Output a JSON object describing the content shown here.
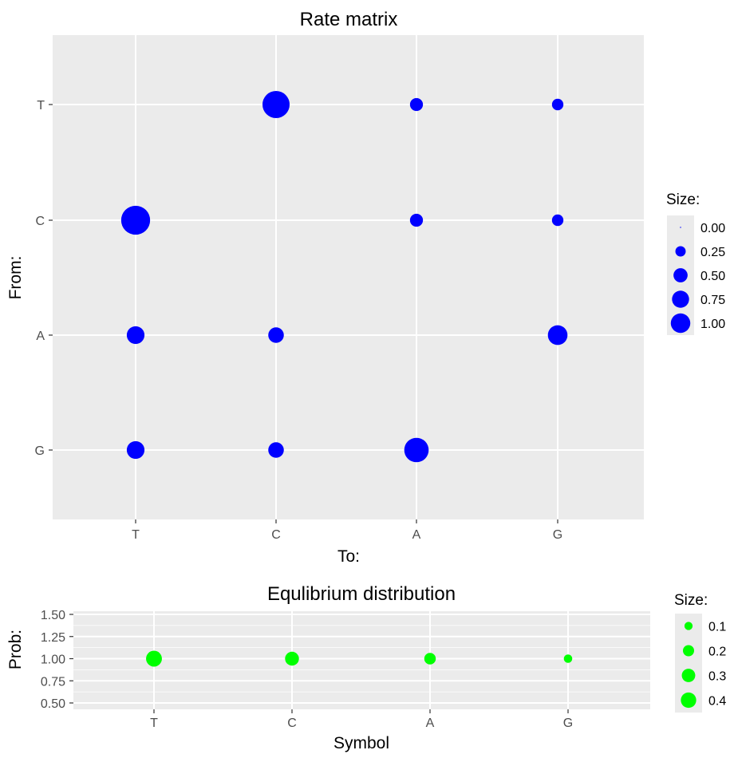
{
  "chart_data": [
    {
      "type": "scatter",
      "title": "Rate matrix",
      "xlabel": "To:",
      "ylabel": "From:",
      "x_categories": [
        "T",
        "C",
        "A",
        "G"
      ],
      "y_categories": [
        "T",
        "C",
        "A",
        "G"
      ],
      "points": [
        {
          "to": "C",
          "from": "T",
          "size": 1.0
        },
        {
          "to": "A",
          "from": "T",
          "size": 0.2
        },
        {
          "to": "G",
          "from": "T",
          "size": 0.15
        },
        {
          "to": "T",
          "from": "C",
          "size": 1.15
        },
        {
          "to": "A",
          "from": "C",
          "size": 0.2
        },
        {
          "to": "G",
          "from": "C",
          "size": 0.15
        },
        {
          "to": "T",
          "from": "A",
          "size": 0.4
        },
        {
          "to": "C",
          "from": "A",
          "size": 0.3
        },
        {
          "to": "G",
          "from": "A",
          "size": 0.5
        },
        {
          "to": "T",
          "from": "G",
          "size": 0.4
        },
        {
          "to": "C",
          "from": "G",
          "size": 0.3
        },
        {
          "to": "A",
          "from": "G",
          "size": 0.8
        }
      ],
      "legend": {
        "title": "Size:",
        "placement": "right",
        "entries": [
          {
            "label": "0.00",
            "value": 0.0
          },
          {
            "label": "0.25",
            "value": 0.25
          },
          {
            "label": "0.50",
            "value": 0.5
          },
          {
            "label": "0.75",
            "value": 0.75
          },
          {
            "label": "1.00",
            "value": 1.0
          }
        ]
      },
      "color": "#0000ff",
      "panel_color": "#ebebeb",
      "grid": true
    },
    {
      "type": "scatter",
      "title": "Equlibrium distribution",
      "xlabel": "Symbol",
      "ylabel": "Prob:",
      "x_categories": [
        "T",
        "C",
        "A",
        "G"
      ],
      "y_ticks": [
        "0.50",
        "0.75",
        "1.00",
        "1.25",
        "1.50"
      ],
      "ylim": [
        0.5,
        1.5
      ],
      "points": [
        {
          "symbol": "T",
          "prob": 1.0,
          "size": 0.4
        },
        {
          "symbol": "C",
          "prob": 1.0,
          "size": 0.3
        },
        {
          "symbol": "A",
          "prob": 1.0,
          "size": 0.2
        },
        {
          "symbol": "G",
          "prob": 1.0,
          "size": 0.1
        }
      ],
      "legend": {
        "title": "Size:",
        "placement": "right",
        "entries": [
          {
            "label": "0.1",
            "value": 0.1
          },
          {
            "label": "0.2",
            "value": 0.2
          },
          {
            "label": "0.3",
            "value": 0.3
          },
          {
            "label": "0.4",
            "value": 0.4
          }
        ]
      },
      "color": "#00ff00",
      "panel_color": "#ebebeb",
      "grid": true
    }
  ]
}
